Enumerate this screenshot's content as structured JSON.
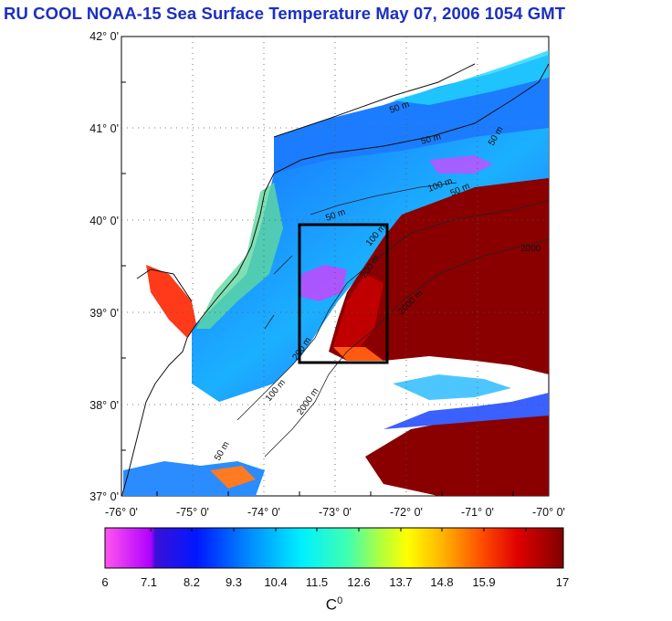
{
  "title": "RU COOL  NOAA-15 Sea Surface Temperature May 07, 2006 1054 GMT",
  "lat_labels": [
    "42° 0'",
    "41° 0'",
    "40° 0'",
    "39° 0'",
    "38° 0'",
    "37° 0'"
  ],
  "lon_labels": [
    "-76° 0'",
    "-75° 0'",
    "-74° 0'",
    "-73° 0'",
    "-72° 0'",
    "-71° 0'",
    "-70° 0'"
  ],
  "colorbar": {
    "ticks": [
      "6",
      "7.1",
      "8.2",
      "9.3",
      "10.4",
      "11.5",
      "12.6",
      "13.7",
      "14.8",
      "15.9",
      "17"
    ],
    "unit": "C",
    "unit_sup": "0",
    "range": [
      6,
      17
    ]
  },
  "isobath_labels": [
    "50 m",
    "50 m",
    "50 m",
    "50 m",
    "50 m",
    "100 m",
    "100 m",
    "200 m",
    "2000",
    "2000 m",
    "2000 m",
    "200 m",
    "100 m",
    "50 m"
  ],
  "study_box": {
    "lon": [
      -73.45,
      -72.45
    ],
    "lat": [
      38.5,
      40.0
    ]
  }
}
